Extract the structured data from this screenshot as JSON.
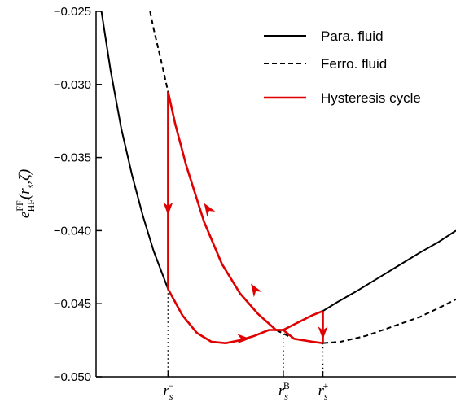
{
  "chart_data": {
    "type": "line",
    "title": "",
    "xlabel": "",
    "ylabel": {
      "main": "e",
      "sup": "FF",
      "sub": "HF",
      "args": "(r",
      "args_sub": "s",
      "args_rest": ",ζ)"
    },
    "ylim": [
      -0.05,
      -0.025
    ],
    "xlim": [
      0.0,
      1.0
    ],
    "yticks": [
      "−0.025",
      "−0.030",
      "−0.035",
      "−0.040",
      "−0.045",
      "−0.050"
    ],
    "ytick_values": [
      -0.025,
      -0.03,
      -0.035,
      -0.04,
      -0.045,
      -0.05
    ],
    "x_markers": [
      {
        "x": 0.2,
        "base": "r",
        "sub": "s",
        "sup": "−"
      },
      {
        "x": 0.52,
        "base": "r",
        "sub": "s",
        "sup": "B"
      },
      {
        "x": 0.63,
        "base": "r",
        "sub": "s",
        "sup": "+"
      }
    ],
    "legend": {
      "position": "top-right",
      "entries": [
        {
          "label": "Para. fluid",
          "style": "solid",
          "color": "#000000"
        },
        {
          "label": "Ferro. fluid",
          "style": "dashed",
          "color": "#000000"
        },
        {
          "label": "Hysteresis cycle",
          "style": "solid",
          "color": "#e00000"
        }
      ]
    },
    "series": [
      {
        "name": "Para. fluid",
        "style": "solid",
        "color": "#000000",
        "x": [
          0.015,
          0.04,
          0.07,
          0.1,
          0.13,
          0.16,
          0.2,
          0.24,
          0.28,
          0.32,
          0.36,
          0.4,
          0.44,
          0.48,
          0.52,
          0.56,
          0.6,
          0.63,
          0.67,
          0.72,
          0.78,
          0.84,
          0.9,
          0.95,
          1.0
        ],
        "y": [
          -0.025,
          -0.029,
          -0.033,
          -0.0362,
          -0.039,
          -0.0414,
          -0.044,
          -0.0458,
          -0.047,
          -0.0476,
          -0.0477,
          -0.0475,
          -0.0472,
          -0.0468,
          -0.0468,
          -0.0463,
          -0.0458,
          -0.0455,
          -0.0449,
          -0.0442,
          -0.0433,
          -0.0424,
          -0.0415,
          -0.0408,
          -0.04
        ]
      },
      {
        "name": "Ferro. fluid",
        "style": "dashed",
        "color": "#000000",
        "x": [
          0.15,
          0.16,
          0.18,
          0.2,
          0.22,
          0.25,
          0.3,
          0.35,
          0.4,
          0.45,
          0.5,
          0.55,
          0.6,
          0.63,
          0.68,
          0.75,
          0.82,
          0.9,
          0.96,
          1.0
        ],
        "y": [
          -0.025,
          -0.0262,
          -0.0283,
          -0.0305,
          -0.0327,
          -0.0355,
          -0.0394,
          -0.0423,
          -0.0443,
          -0.0457,
          -0.0468,
          -0.0474,
          -0.0476,
          -0.0477,
          -0.0476,
          -0.0472,
          -0.0466,
          -0.0459,
          -0.0452,
          -0.0447
        ]
      },
      {
        "name": "Hysteresis cycle",
        "style": "solid",
        "color": "#e00000",
        "segments": [
          {
            "x": [
              0.2,
              0.2
            ],
            "y": [
              -0.0305,
              -0.044
            ]
          },
          {
            "x": [
              0.2,
              0.24,
              0.28,
              0.32,
              0.36,
              0.4,
              0.44,
              0.48,
              0.52,
              0.56,
              0.6,
              0.63
            ],
            "y": [
              -0.044,
              -0.0458,
              -0.047,
              -0.0476,
              -0.0477,
              -0.0475,
              -0.0472,
              -0.0468,
              -0.0468,
              -0.0463,
              -0.0458,
              -0.0455
            ]
          },
          {
            "x": [
              0.63,
              0.63
            ],
            "y": [
              -0.0455,
              -0.0477
            ]
          },
          {
            "x": [
              0.63,
              0.6,
              0.55,
              0.52,
              0.5,
              0.45,
              0.4,
              0.35,
              0.3,
              0.25,
              0.22,
              0.2
            ],
            "y": [
              -0.0477,
              -0.0476,
              -0.0474,
              -0.0468,
              -0.0468,
              -0.0457,
              -0.0443,
              -0.0423,
              -0.0394,
              -0.0355,
              -0.0327,
              -0.0305
            ]
          }
        ]
      }
    ],
    "arrows": [
      {
        "x": 0.2,
        "y": -0.0385,
        "direction": "down"
      },
      {
        "x": 0.41,
        "y": -0.0474,
        "direction": "right"
      },
      {
        "x": 0.63,
        "y": -0.047,
        "direction": "down"
      },
      {
        "x": 0.44,
        "y": -0.044,
        "direction": "up-left"
      },
      {
        "x": 0.31,
        "y": -0.0385,
        "direction": "up-left"
      }
    ],
    "grid": false
  }
}
